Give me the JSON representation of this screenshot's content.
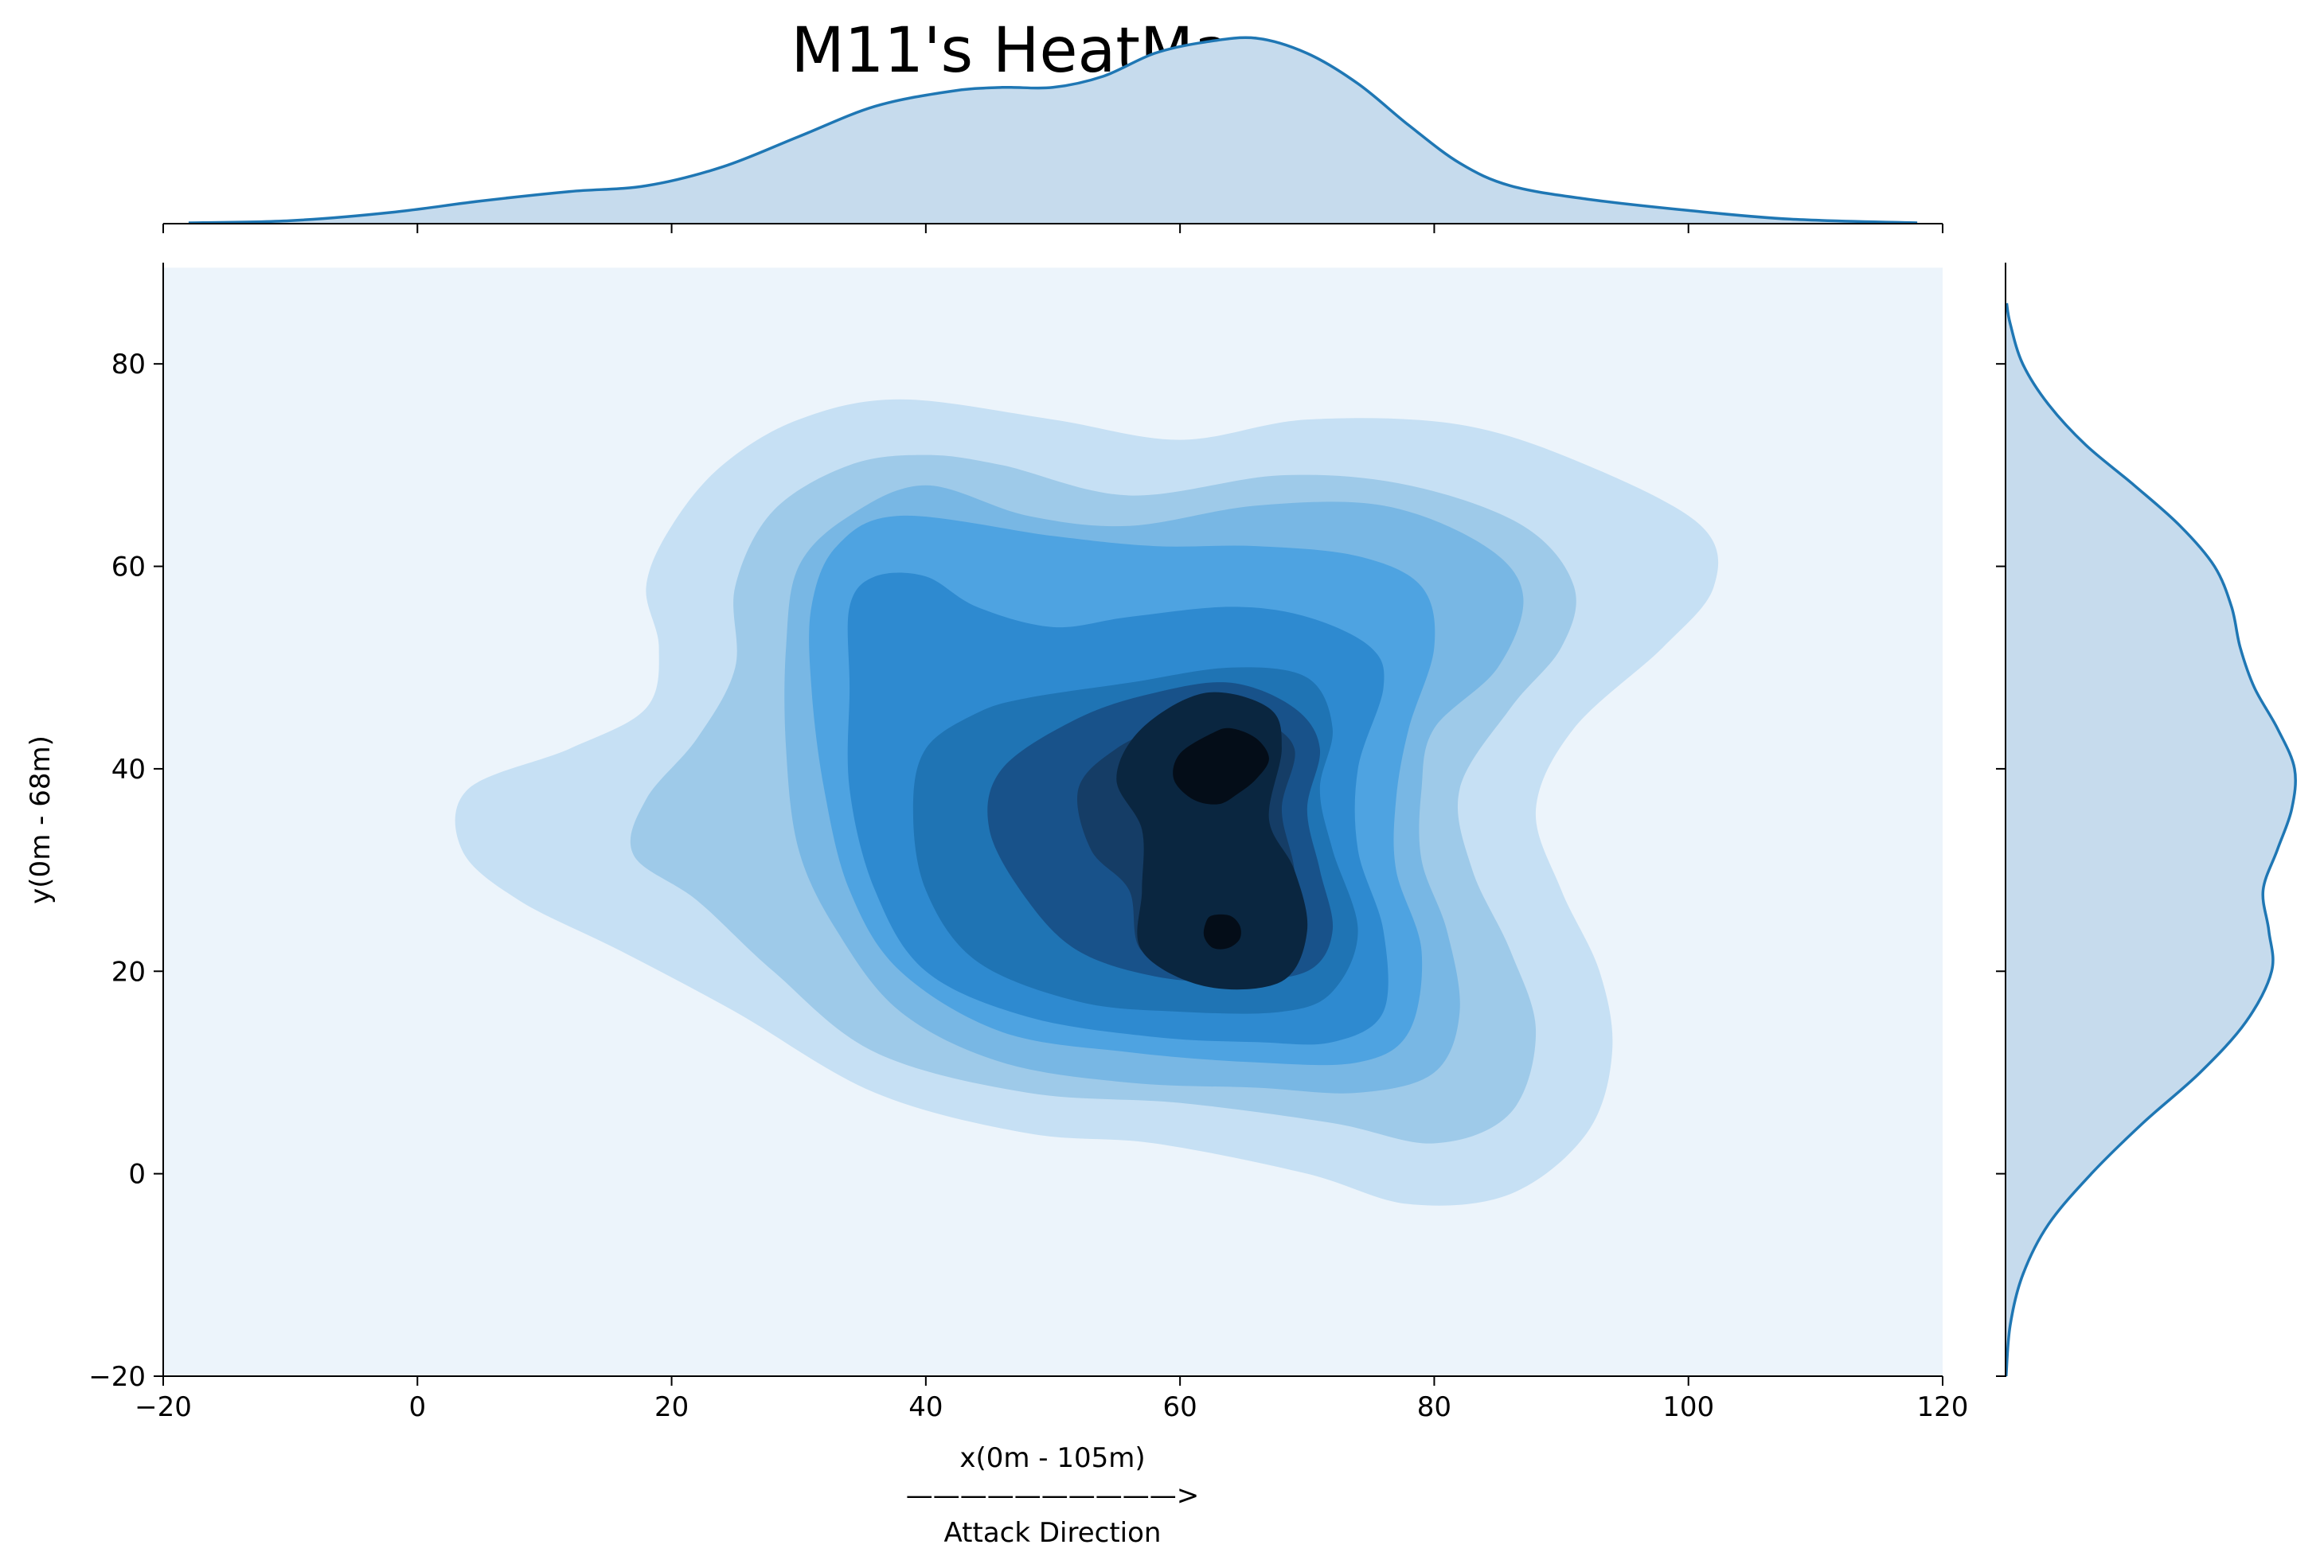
{
  "chart_data": {
    "type": "heatmap",
    "subtype": "kde-jointplot",
    "title": "M11's HeatMap",
    "xlabel_lines": [
      "x(0m - 105m)",
      "——————————>",
      "Attack Direction"
    ],
    "ylabel": "y(0m - 68m)",
    "xlim": [
      -20,
      120
    ],
    "ylim": [
      -20,
      90
    ],
    "xticks": [
      -20,
      0,
      20,
      40,
      60,
      80,
      100,
      120
    ],
    "xtick_labels": [
      "−20",
      "0",
      "20",
      "40",
      "60",
      "80",
      "100",
      "120"
    ],
    "yticks": [
      -20,
      0,
      20,
      40,
      60,
      80
    ],
    "ytick_labels": [
      "−20",
      "0",
      "20",
      "40",
      "60",
      "80"
    ],
    "colormap": "Blues",
    "density_levels": 10,
    "peaks": [
      {
        "x": 64,
        "y": 40
      },
      {
        "x": 63.5,
        "y": 24
      }
    ],
    "contours": [
      {
        "level": 1,
        "color": "#c6e0f4",
        "points": [
          [
            38,
            76.5
          ],
          [
            30,
            74.5
          ],
          [
            24,
            70
          ],
          [
            20,
            64
          ],
          [
            18,
            58
          ],
          [
            19,
            52
          ],
          [
            18,
            46
          ],
          [
            12,
            42
          ],
          [
            4,
            38
          ],
          [
            3.5,
            32
          ],
          [
            8,
            27
          ],
          [
            16,
            22
          ],
          [
            25,
            16
          ],
          [
            36,
            8
          ],
          [
            48,
            4
          ],
          [
            58,
            3
          ],
          [
            70,
            0
          ],
          [
            78,
            -3
          ],
          [
            86,
            -2
          ],
          [
            92,
            4
          ],
          [
            94,
            12
          ],
          [
            93,
            20
          ],
          [
            90,
            28
          ],
          [
            88,
            36
          ],
          [
            91,
            44
          ],
          [
            98,
            52
          ],
          [
            102,
            58
          ],
          [
            101,
            64
          ],
          [
            92,
            70
          ],
          [
            82,
            74
          ],
          [
            70,
            74.5
          ],
          [
            60,
            72.5
          ],
          [
            50,
            74.5
          ]
        ]
      },
      {
        "level": 2,
        "color": "#9ecae9",
        "points": [
          [
            40,
            71
          ],
          [
            34,
            70
          ],
          [
            28,
            65.5
          ],
          [
            25,
            58
          ],
          [
            25,
            50
          ],
          [
            22,
            43
          ],
          [
            18,
            37
          ],
          [
            17,
            31.5
          ],
          [
            22,
            27
          ],
          [
            28,
            20
          ],
          [
            36,
            12
          ],
          [
            48,
            8
          ],
          [
            60,
            7
          ],
          [
            72,
            5
          ],
          [
            80,
            3
          ],
          [
            86,
            6
          ],
          [
            88,
            14
          ],
          [
            86,
            22
          ],
          [
            83,
            30
          ],
          [
            82,
            38
          ],
          [
            86,
            46
          ],
          [
            90,
            52
          ],
          [
            91,
            58
          ],
          [
            87,
            64
          ],
          [
            78,
            68
          ],
          [
            68,
            69
          ],
          [
            56,
            67
          ],
          [
            46,
            70
          ]
        ]
      },
      {
        "level": 3,
        "color": "#78b7e4",
        "points": [
          [
            40,
            68
          ],
          [
            34,
            65
          ],
          [
            30,
            60
          ],
          [
            29,
            52
          ],
          [
            29,
            42
          ],
          [
            30,
            32
          ],
          [
            33,
            24
          ],
          [
            38,
            16
          ],
          [
            46,
            11
          ],
          [
            56,
            9
          ],
          [
            66,
            8.5
          ],
          [
            74,
            8
          ],
          [
            80,
            10
          ],
          [
            82,
            16
          ],
          [
            81,
            24
          ],
          [
            79,
            31
          ],
          [
            79,
            38
          ],
          [
            80,
            44
          ],
          [
            85,
            50
          ],
          [
            87,
            57
          ],
          [
            84,
            62
          ],
          [
            76,
            66
          ],
          [
            66,
            66
          ],
          [
            56,
            64
          ],
          [
            48,
            65
          ]
        ]
      },
      {
        "level": 4,
        "color": "#4ea3e1",
        "points": [
          [
            38,
            65
          ],
          [
            33,
            62
          ],
          [
            31,
            56
          ],
          [
            31,
            48
          ],
          [
            32,
            38
          ],
          [
            34,
            28
          ],
          [
            38,
            20
          ],
          [
            46,
            14
          ],
          [
            56,
            12
          ],
          [
            66,
            11
          ],
          [
            74,
            11
          ],
          [
            78,
            14
          ],
          [
            79,
            22
          ],
          [
            77,
            30
          ],
          [
            77,
            37
          ],
          [
            78,
            44
          ],
          [
            80,
            52
          ],
          [
            79,
            58
          ],
          [
            74,
            61
          ],
          [
            66,
            62
          ],
          [
            58,
            62
          ],
          [
            50,
            63
          ]
        ]
      },
      {
        "level": 5,
        "color": "#2e8ad0",
        "points": [
          [
            36,
            59
          ],
          [
            34,
            56
          ],
          [
            34,
            48
          ],
          [
            34,
            38
          ],
          [
            36,
            28
          ],
          [
            40,
            20
          ],
          [
            48,
            15.5
          ],
          [
            58,
            13.5
          ],
          [
            66,
            13
          ],
          [
            72,
            13
          ],
          [
            76,
            16
          ],
          [
            76,
            24
          ],
          [
            74,
            32
          ],
          [
            74,
            40
          ],
          [
            76,
            48
          ],
          [
            75,
            52
          ],
          [
            70,
            55
          ],
          [
            64,
            56
          ],
          [
            56,
            55
          ],
          [
            50,
            54
          ],
          [
            44,
            56
          ],
          [
            40,
            59
          ]
        ]
      },
      {
        "level": 6,
        "color": "#1f74b4",
        "points": [
          [
            48,
            47
          ],
          [
            44,
            45.5
          ],
          [
            40,
            42
          ],
          [
            39,
            36
          ],
          [
            40,
            28
          ],
          [
            44,
            21
          ],
          [
            52,
            17
          ],
          [
            60,
            16
          ],
          [
            68,
            16
          ],
          [
            72,
            18
          ],
          [
            74,
            24
          ],
          [
            72,
            32
          ],
          [
            71,
            38
          ],
          [
            72,
            44
          ],
          [
            70,
            49
          ],
          [
            64,
            50
          ],
          [
            56,
            48.5
          ]
        ]
      },
      {
        "level": 7,
        "color": "#18528a",
        "points": [
          [
            58,
            47.5
          ],
          [
            52,
            45
          ],
          [
            46,
            40
          ],
          [
            45,
            34
          ],
          [
            48,
            27
          ],
          [
            52,
            22
          ],
          [
            58,
            19.5
          ],
          [
            64,
            19
          ],
          [
            70,
            20
          ],
          [
            72,
            24
          ],
          [
            71,
            30
          ],
          [
            70,
            36
          ],
          [
            71,
            42
          ],
          [
            69,
            46
          ],
          [
            64,
            48.5
          ]
        ]
      },
      {
        "level": 8,
        "color": "#153d66",
        "points": [
          [
            60,
            45
          ],
          [
            55,
            42
          ],
          [
            52,
            38
          ],
          [
            53,
            32
          ],
          [
            56,
            28
          ],
          [
            57,
            22
          ],
          [
            62,
            20.5
          ],
          [
            67,
            21
          ],
          [
            69,
            24
          ],
          [
            69,
            30
          ],
          [
            68,
            36
          ],
          [
            69,
            42
          ],
          [
            66,
            45
          ],
          [
            62,
            46
          ]
        ]
      },
      {
        "level": 9,
        "color": "#0a2640",
        "points": [
          [
            62,
            47.5
          ],
          [
            57,
            44
          ],
          [
            55,
            39
          ],
          [
            57,
            34
          ],
          [
            57,
            28
          ],
          [
            57,
            22
          ],
          [
            62,
            18.5
          ],
          [
            68,
            19
          ],
          [
            70,
            24
          ],
          [
            69,
            30
          ],
          [
            67,
            35
          ],
          [
            68,
            42
          ],
          [
            67,
            46
          ]
        ]
      },
      {
        "level": 10,
        "color": "#040d18",
        "points": [
          [
            62.5,
            43.5
          ],
          [
            60,
            41.5
          ],
          [
            59.5,
            39
          ],
          [
            61,
            37
          ],
          [
            63,
            36.5
          ],
          [
            64.5,
            37.5
          ],
          [
            66,
            39
          ],
          [
            67,
            41
          ],
          [
            66,
            43
          ],
          [
            64,
            44
          ]
        ]
      },
      {
        "level": 10,
        "color": "#040d18",
        "points": [
          [
            62.5,
            25.5
          ],
          [
            63.9,
            25.5
          ],
          [
            64.7,
            24.5
          ],
          [
            64.7,
            23.2
          ],
          [
            63.8,
            22.3
          ],
          [
            62.6,
            22.3
          ],
          [
            61.9,
            23.4
          ],
          [
            62,
            24.7
          ]
        ]
      }
    ],
    "marginal_x": {
      "points": [
        [
          -18,
          0.02
        ],
        [
          -10,
          0.08
        ],
        [
          -2,
          0.3
        ],
        [
          5,
          0.6
        ],
        [
          12,
          0.85
        ],
        [
          18,
          1.0
        ],
        [
          24,
          1.5
        ],
        [
          30,
          2.3
        ],
        [
          36,
          3.1
        ],
        [
          42,
          3.5
        ],
        [
          46,
          3.6
        ],
        [
          50,
          3.6
        ],
        [
          54,
          3.9
        ],
        [
          58,
          4.5
        ],
        [
          62,
          4.8
        ],
        [
          66,
          4.9
        ],
        [
          70,
          4.5
        ],
        [
          74,
          3.7
        ],
        [
          78,
          2.6
        ],
        [
          82,
          1.6
        ],
        [
          86,
          1.0
        ],
        [
          92,
          0.65
        ],
        [
          100,
          0.35
        ],
        [
          108,
          0.12
        ],
        [
          118,
          0.02
        ]
      ],
      "line_color": "#1f77b4",
      "fill_color": "#c6dbed"
    },
    "marginal_y": {
      "points": [
        [
          -20,
          0.01
        ],
        [
          -15,
          0.08
        ],
        [
          -10,
          0.3
        ],
        [
          -5,
          0.75
        ],
        [
          0,
          1.5
        ],
        [
          5,
          2.4
        ],
        [
          10,
          3.4
        ],
        [
          15,
          4.2
        ],
        [
          20,
          4.65
        ],
        [
          24,
          4.6
        ],
        [
          28,
          4.5
        ],
        [
          32,
          4.75
        ],
        [
          36,
          5.0
        ],
        [
          40,
          5.05
        ],
        [
          44,
          4.75
        ],
        [
          48,
          4.35
        ],
        [
          52,
          4.1
        ],
        [
          56,
          3.95
        ],
        [
          60,
          3.65
        ],
        [
          64,
          3.05
        ],
        [
          68,
          2.25
        ],
        [
          72,
          1.4
        ],
        [
          76,
          0.75
        ],
        [
          80,
          0.3
        ],
        [
          84,
          0.08
        ],
        [
          86,
          0.02
        ]
      ],
      "line_color": "#1f77b4",
      "fill_color": "#c6dbed"
    },
    "background_color": "#ecf4fb",
    "grid": false,
    "legend": "none"
  }
}
